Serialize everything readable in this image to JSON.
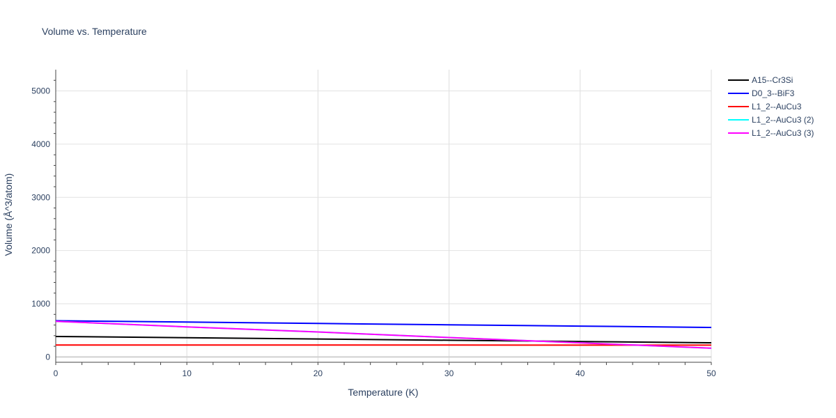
{
  "chart_data": {
    "type": "line",
    "title": "Volume vs. Temperature",
    "xlabel": "Temperature (K)",
    "ylabel": "Volume (Å^3/atom)",
    "xlim": [
      0,
      50
    ],
    "ylim": [
      -100,
      5400
    ],
    "xticks": [
      0,
      10,
      20,
      30,
      40,
      50
    ],
    "yticks": [
      0,
      1000,
      2000,
      3000,
      4000,
      5000
    ],
    "grid": true,
    "legend_position": "top-right",
    "x": [
      0,
      10,
      20,
      30,
      40,
      50
    ],
    "series": [
      {
        "name": "A15--Cr3Si",
        "color": "#000000",
        "values": [
          385,
          362,
          338,
          314,
          290,
          267
        ]
      },
      {
        "name": "D0_3--BiF3",
        "color": "#0000ff",
        "values": [
          680,
          655,
          630,
          605,
          580,
          555
        ]
      },
      {
        "name": "L1_2--AuCu3",
        "color": "#ff0000",
        "values": [
          225,
          224,
          224,
          223,
          222,
          222
        ]
      },
      {
        "name": "L1_2--AuCu3 (2)",
        "color": "#00ffff",
        "values": [
          670,
          565,
          470,
          365,
          265,
          165
        ]
      },
      {
        "name": "L1_2--AuCu3 (3)",
        "color": "#ff00ff",
        "values": [
          670,
          565,
          470,
          365,
          265,
          165
        ]
      }
    ]
  }
}
